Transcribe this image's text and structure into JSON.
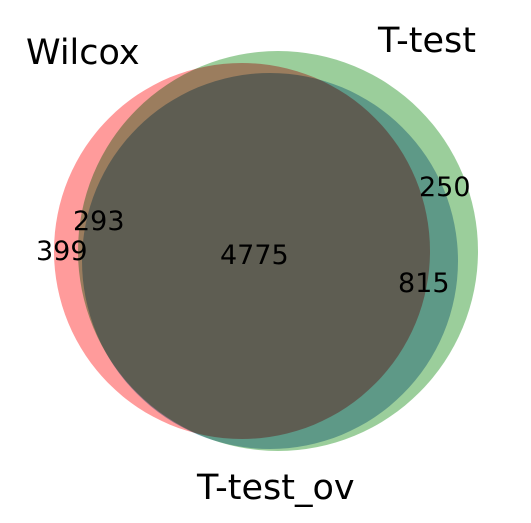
{
  "diagram": {
    "type": "venn3",
    "sets": [
      {
        "name": "Wilcox",
        "color": "#ff6666"
      },
      {
        "name": "T-test",
        "color": "#66b366"
      },
      {
        "name": "T-test_ov",
        "color": "#6699cc"
      }
    ],
    "region_counts": {
      "wilcox_only": "399",
      "wilcox_and_ttest_only": "293",
      "ttest_only": "250",
      "ttest_and_ttestov_only": "815",
      "all_three": "4775"
    }
  }
}
